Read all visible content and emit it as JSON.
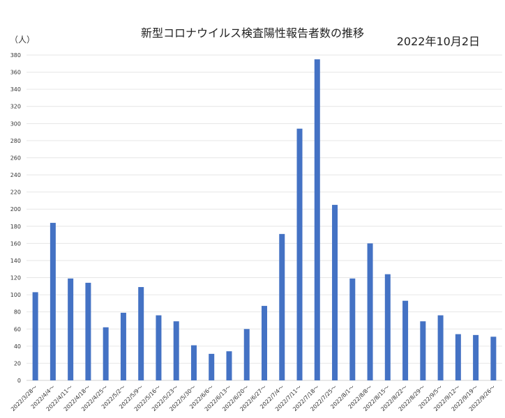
{
  "chart_data": {
    "type": "bar",
    "title": "新型コロナウイルス検査陽性報告者数の推移",
    "date": "2022年10月2日",
    "ylabel": "（人）",
    "xlabel": "",
    "ylim": [
      0,
      380
    ],
    "ytick_step": 20,
    "grid": true,
    "color": "#4472C4",
    "categories": [
      "2022/3/28～",
      "2022/4/4～",
      "2022/4/11～",
      "2022/4/18～",
      "2022/4/25～",
      "2022/5/2～",
      "2022/5/9～",
      "2022/5/16～",
      "2022/5/23～",
      "2022/5/30～",
      "2022/6/6～",
      "2022/6/13～",
      "2022/6/20～",
      "2022/6/27～",
      "2022/7/4～",
      "2022/7/11～",
      "2022/7/18～",
      "2022/7/25～",
      "2022/8/1～",
      "2022/8/8～",
      "2022/8/15～",
      "2022/8/22～",
      "2022/8/29～",
      "2022/9/5～",
      "2022/9/12～",
      "2022/9/19～",
      "2022/9/26～"
    ],
    "values": [
      103,
      184,
      119,
      114,
      62,
      79,
      109,
      76,
      69,
      41,
      31,
      34,
      60,
      87,
      171,
      294,
      375,
      205,
      119,
      160,
      124,
      93,
      69,
      76,
      54,
      53,
      51
    ]
  }
}
